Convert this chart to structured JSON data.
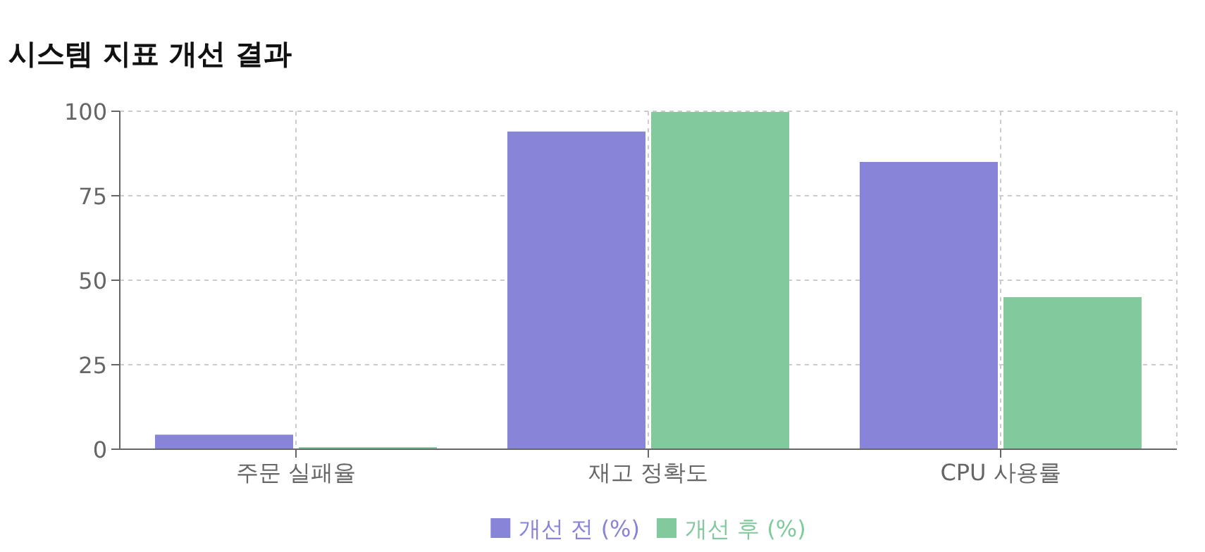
{
  "chart_data": {
    "type": "bar",
    "title": "시스템 지표 개선 결과",
    "categories": [
      "주문 실패율",
      "재고 정확도",
      "CPU 사용률"
    ],
    "series": [
      {
        "name": "개선 전 (%)",
        "color": "#8884d8",
        "values": [
          4.3,
          94,
          85
        ]
      },
      {
        "name": "개선 후 (%)",
        "color": "#82ca9d",
        "values": [
          0.6,
          99.8,
          45
        ]
      }
    ],
    "ylim": [
      0,
      100
    ],
    "yticks": [
      0,
      25,
      50,
      75,
      100
    ],
    "grid": true,
    "legend": "bottom"
  }
}
